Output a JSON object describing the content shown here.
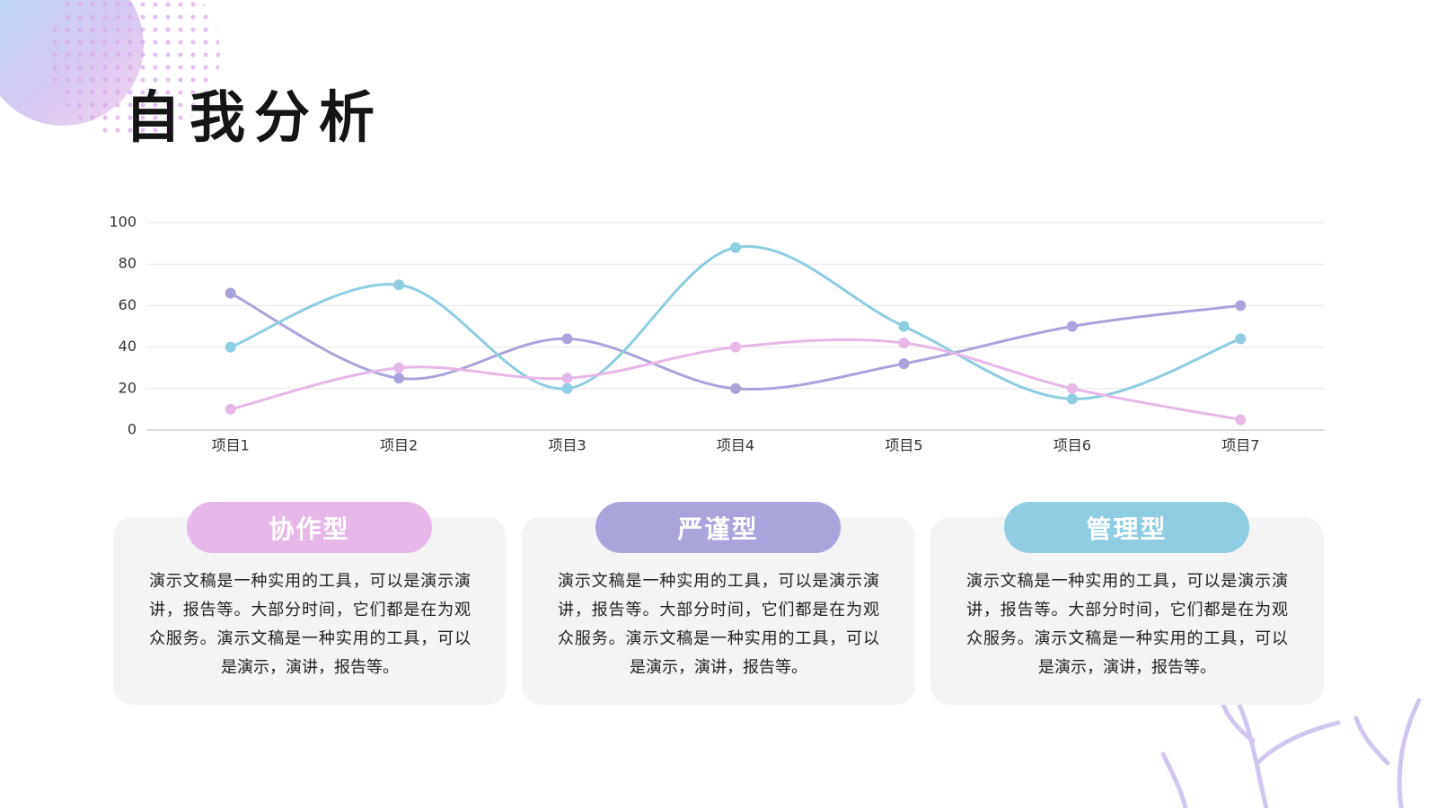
{
  "title": "自我分析",
  "chart_data": {
    "type": "line",
    "categories": [
      "项目1",
      "项目2",
      "项目3",
      "项目4",
      "项目5",
      "项目6",
      "项目7"
    ],
    "series": [
      {
        "color": "#a9a5dc",
        "values": [
          66,
          25,
          44,
          20,
          32,
          50,
          60
        ]
      },
      {
        "color": "#8fcde0",
        "values": [
          40,
          70,
          20,
          88,
          50,
          15,
          44
        ]
      },
      {
        "color": "#e6b8e8",
        "values": [
          10,
          30,
          25,
          40,
          42,
          20,
          5
        ]
      }
    ],
    "ylim": [
      0,
      100
    ],
    "yticks": [
      0,
      20,
      40,
      60,
      80,
      100
    ],
    "grid": true,
    "smooth": true
  },
  "cards": [
    {
      "title": "协作型",
      "color": "#e6b8e8",
      "text": "演示文稿是一种实用的工具，可以是演示演讲，报告等。大部分时间，它们都是在为观众服务。演示文稿是一种实用的工具，可以是演示，演讲，报告等。"
    },
    {
      "title": "严谨型",
      "color": "#a9a5dc",
      "text": "演示文稿是一种实用的工具，可以是演示演讲，报告等。大部分时间，它们都是在为观众服务。演示文稿是一种实用的工具，可以是演示，演讲，报告等。"
    },
    {
      "title": "管理型",
      "color": "#8fcde0",
      "text": "演示文稿是一种实用的工具，可以是演示演讲，报告等。大部分时间，它们都是在为观众服务。演示文稿是一种实用的工具，可以是演示，演讲，报告等。"
    }
  ]
}
